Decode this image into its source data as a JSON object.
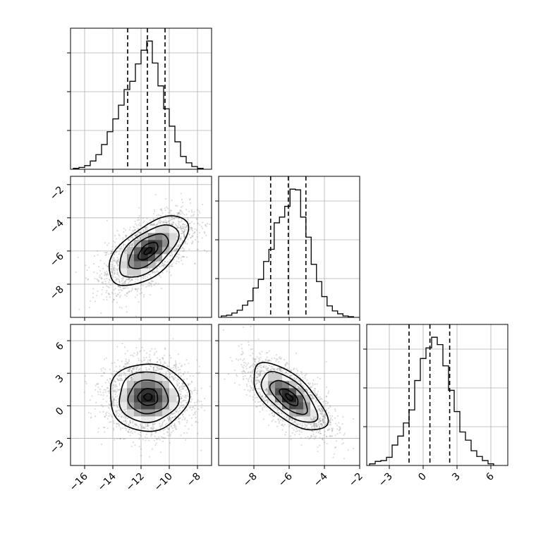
{
  "chart_data": {
    "type": "corner",
    "parameters": [
      "",
      "",
      ""
    ],
    "quantiles": [
      0.16,
      0.5,
      0.84
    ],
    "colors": {
      "line": "#000000",
      "grid": "#b0b0b0",
      "scatter": "#8c8c8c"
    },
    "grid": true,
    "diagonal": [
      {
        "param_index": 0,
        "xlim": [
          -17,
          -7
        ],
        "bins": [
          -16.6,
          -16.2,
          -15.8,
          -15.4,
          -15.0,
          -14.6,
          -14.2,
          -13.8,
          -13.4,
          -13.0,
          -12.6,
          -12.2,
          -11.8,
          -11.4,
          -11.0,
          -10.6,
          -10.2,
          -9.8,
          -9.4,
          -9.0,
          -8.6,
          -8.2,
          -7.8
        ],
        "counts": [
          1,
          2,
          4,
          9,
          16,
          27,
          41,
          55,
          70,
          87,
          96,
          115,
          130,
          140,
          116,
          91,
          66,
          47,
          30,
          14,
          7,
          3,
          1
        ],
        "quantile_values": [
          -12.95,
          -11.55,
          -10.3
        ]
      },
      {
        "param_index": 1,
        "xlim": [
          -10,
          -2
        ],
        "bins": [
          -9.7,
          -9.4,
          -9.1,
          -8.8,
          -8.5,
          -8.2,
          -7.9,
          -7.6,
          -7.3,
          -7.0,
          -6.7,
          -6.4,
          -6.1,
          -5.8,
          -5.5,
          -5.2,
          -4.9,
          -4.6,
          -4.3,
          -4.0,
          -3.7,
          -3.4,
          -3.1,
          -2.8,
          -2.5
        ],
        "counts": [
          2,
          3,
          6,
          10,
          17,
          23,
          41,
          53,
          78,
          95,
          132,
          140,
          155,
          179,
          178,
          140,
          112,
          74,
          50,
          29,
          16,
          9,
          5,
          2,
          1
        ],
        "quantile_values": [
          -7.05,
          -6.05,
          -5.05
        ]
      },
      {
        "param_index": 2,
        "xlim": [
          -5,
          7.5
        ],
        "bins": [
          -4.5,
          -4.0,
          -3.5,
          -3.0,
          -2.5,
          -2.0,
          -1.5,
          -1.0,
          -0.5,
          0.0,
          0.5,
          1.0,
          1.5,
          2.0,
          2.5,
          3.0,
          3.5,
          4.0,
          4.5,
          5.0,
          5.5,
          6.0
        ],
        "counts": [
          2,
          5,
          6,
          10,
          25,
          36,
          52,
          68,
          104,
          131,
          144,
          157,
          148,
          122,
          92,
          66,
          41,
          31,
          18,
          11,
          6,
          2
        ],
        "quantile_values": [
          -1.25,
          0.6,
          2.35
        ]
      }
    ],
    "pairs": [
      {
        "x_index": 0,
        "y_index": 1,
        "xlim": [
          -17,
          -7
        ],
        "ylim": [
          -10,
          -1.5
        ],
        "center": [
          -11.5,
          -6.0
        ],
        "sd": [
          1.4,
          1.05
        ],
        "corr": 0.6,
        "contour_scale": [
          2.0,
          1.5,
          1.0,
          0.5,
          0.2
        ]
      },
      {
        "x_index": 0,
        "y_index": 2,
        "xlim": [
          -17,
          -7
        ],
        "ylim": [
          -5.5,
          7.5
        ],
        "center": [
          -11.5,
          0.8
        ],
        "sd": [
          1.4,
          1.55
        ],
        "corr": 0.0,
        "contour_scale": [
          2.0,
          1.5,
          1.0,
          0.5,
          0.2
        ]
      },
      {
        "x_index": 1,
        "y_index": 2,
        "xlim": [
          -10,
          -2
        ],
        "ylim": [
          -5.5,
          7.5
        ],
        "center": [
          -6.0,
          0.8
        ],
        "sd": [
          1.05,
          1.55
        ],
        "corr": -0.65,
        "contour_scale": [
          2.0,
          1.5,
          1.0,
          0.5,
          0.2
        ]
      }
    ],
    "y_tick_labels": {
      "row1": [
        "−2",
        "−4",
        "−6",
        "−8"
      ],
      "row2": [
        "6",
        "3",
        "0",
        "−3"
      ]
    },
    "x_tick_labels": {
      "col0": [
        "−16",
        "−14",
        "−12",
        "−10",
        "−8"
      ],
      "col1": [
        "−8",
        "−6",
        "−4",
        "−2"
      ],
      "col2": [
        "−3",
        "0",
        "3",
        "6"
      ]
    },
    "tick_values": {
      "p0": [
        -16,
        -14,
        -12,
        -10,
        -8
      ],
      "p1": [
        -8,
        -6,
        -4,
        -2
      ],
      "p2": [
        -3,
        0,
        3,
        6
      ],
      "p1_y": [
        -2,
        -4,
        -6,
        -8
      ],
      "p2_y": [
        6,
        3,
        0,
        -3
      ]
    }
  }
}
